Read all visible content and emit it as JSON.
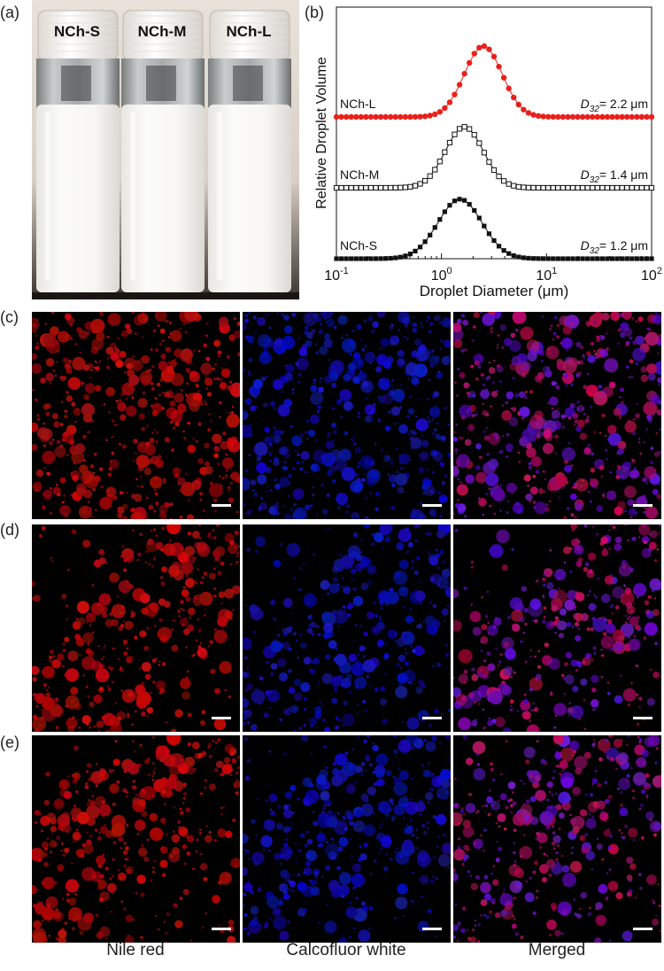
{
  "panel_labels": [
    "(a)",
    "(b)",
    "(c)",
    "(d)",
    "(e)"
  ],
  "vials": [
    {
      "label": "NCh-S"
    },
    {
      "label": "NCh-M"
    },
    {
      "label": "NCh-L"
    }
  ],
  "column_labels": [
    "Nile red",
    "Calcofluor white",
    "Merged"
  ],
  "colors": {
    "nile_red": "#d01818",
    "calcofluor": "#2a2ad8",
    "ncl_series": "#e8201c",
    "ncm_series": "#111111",
    "ncs_series": "#111111"
  },
  "chart_data": {
    "type": "scatter",
    "xlabel": "Droplet Diameter (μm)",
    "ylabel": "Relative Droplet Volume",
    "xscale": "log",
    "xlim": [
      0.1,
      100
    ],
    "xticks": [
      {
        "value": 0.1,
        "base": "10",
        "exp": "-1"
      },
      {
        "value": 1,
        "base": "10",
        "exp": "0"
      },
      {
        "value": 10,
        "base": "10",
        "exp": "1"
      },
      {
        "value": 100,
        "base": "10",
        "exp": "2"
      }
    ],
    "series": [
      {
        "name": "NCh-L",
        "marker": "filled-circle",
        "color": "#e8201c",
        "center": 2.5,
        "sigma_log10": 0.18,
        "peak": 1.0,
        "offset": 2.0,
        "d32_prefix": "D",
        "d32_sub": "32",
        "d32_value": "= 2.2 μm"
      },
      {
        "name": "NCh-M",
        "marker": "open-square",
        "color": "#111111",
        "center": 1.65,
        "sigma_log10": 0.18,
        "peak": 0.86,
        "offset": 1.0,
        "d32_prefix": "D",
        "d32_sub": "32",
        "d32_value": "= 1.4 μm"
      },
      {
        "name": "NCh-S",
        "marker": "filled-square",
        "color": "#111111",
        "center": 1.5,
        "sigma_log10": 0.21,
        "peak": 0.84,
        "offset": 0.0,
        "d32_prefix": "D",
        "d32_sub": "32",
        "d32_value": "= 1.2 μm"
      }
    ]
  }
}
